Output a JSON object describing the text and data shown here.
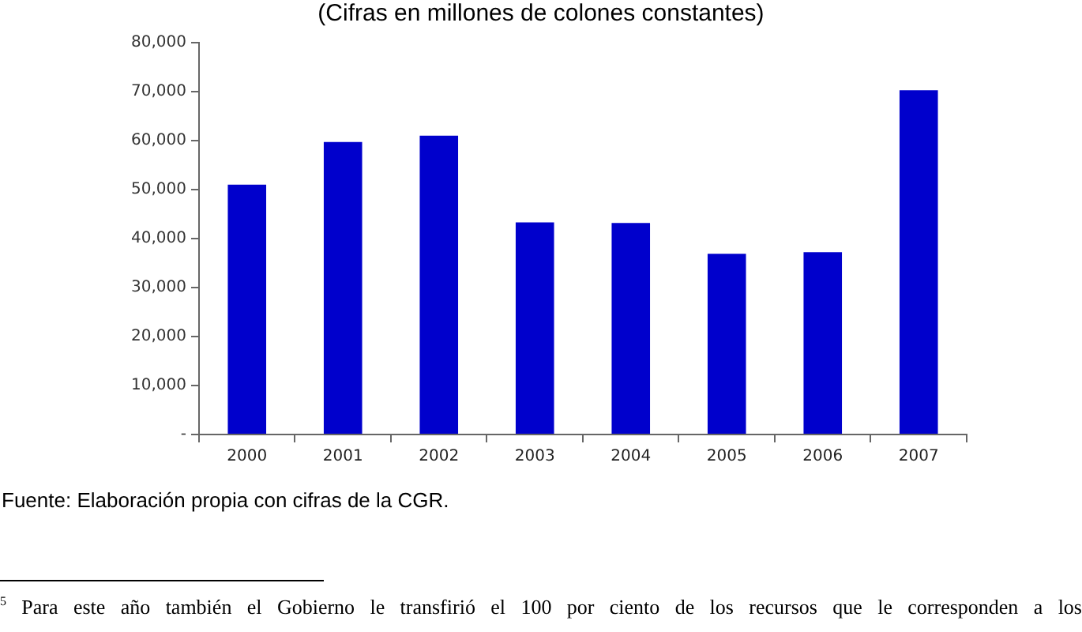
{
  "chart_data": {
    "type": "bar",
    "title": "(Cifras en millones de colones constantes)",
    "categories": [
      "2000",
      "2001",
      "2002",
      "2003",
      "2004",
      "2005",
      "2006",
      "2007"
    ],
    "values": [
      51000,
      59700,
      61000,
      43300,
      43200,
      36900,
      37200,
      70300
    ],
    "color": "#0000cc",
    "ylim": [
      0,
      80000
    ],
    "yticks": [
      {
        "value": 0,
        "label": "-"
      },
      {
        "value": 10000,
        "label": "10,000"
      },
      {
        "value": 20000,
        "label": "20,000"
      },
      {
        "value": 30000,
        "label": "30,000"
      },
      {
        "value": 40000,
        "label": "40,000"
      },
      {
        "value": 50000,
        "label": "50,000"
      },
      {
        "value": 60000,
        "label": "60,000"
      },
      {
        "value": 70000,
        "label": "70,000"
      },
      {
        "value": 80000,
        "label": "80,000"
      }
    ],
    "grid": false,
    "legend": false,
    "annotations": [
      "Fuente: Elaboración propia con cifras de la CGR.",
      "$^{5}$ Para este año también el Gobierno le transfirió  el 100 por ciento de los recursos que le corresponden a los"
    ]
  }
}
